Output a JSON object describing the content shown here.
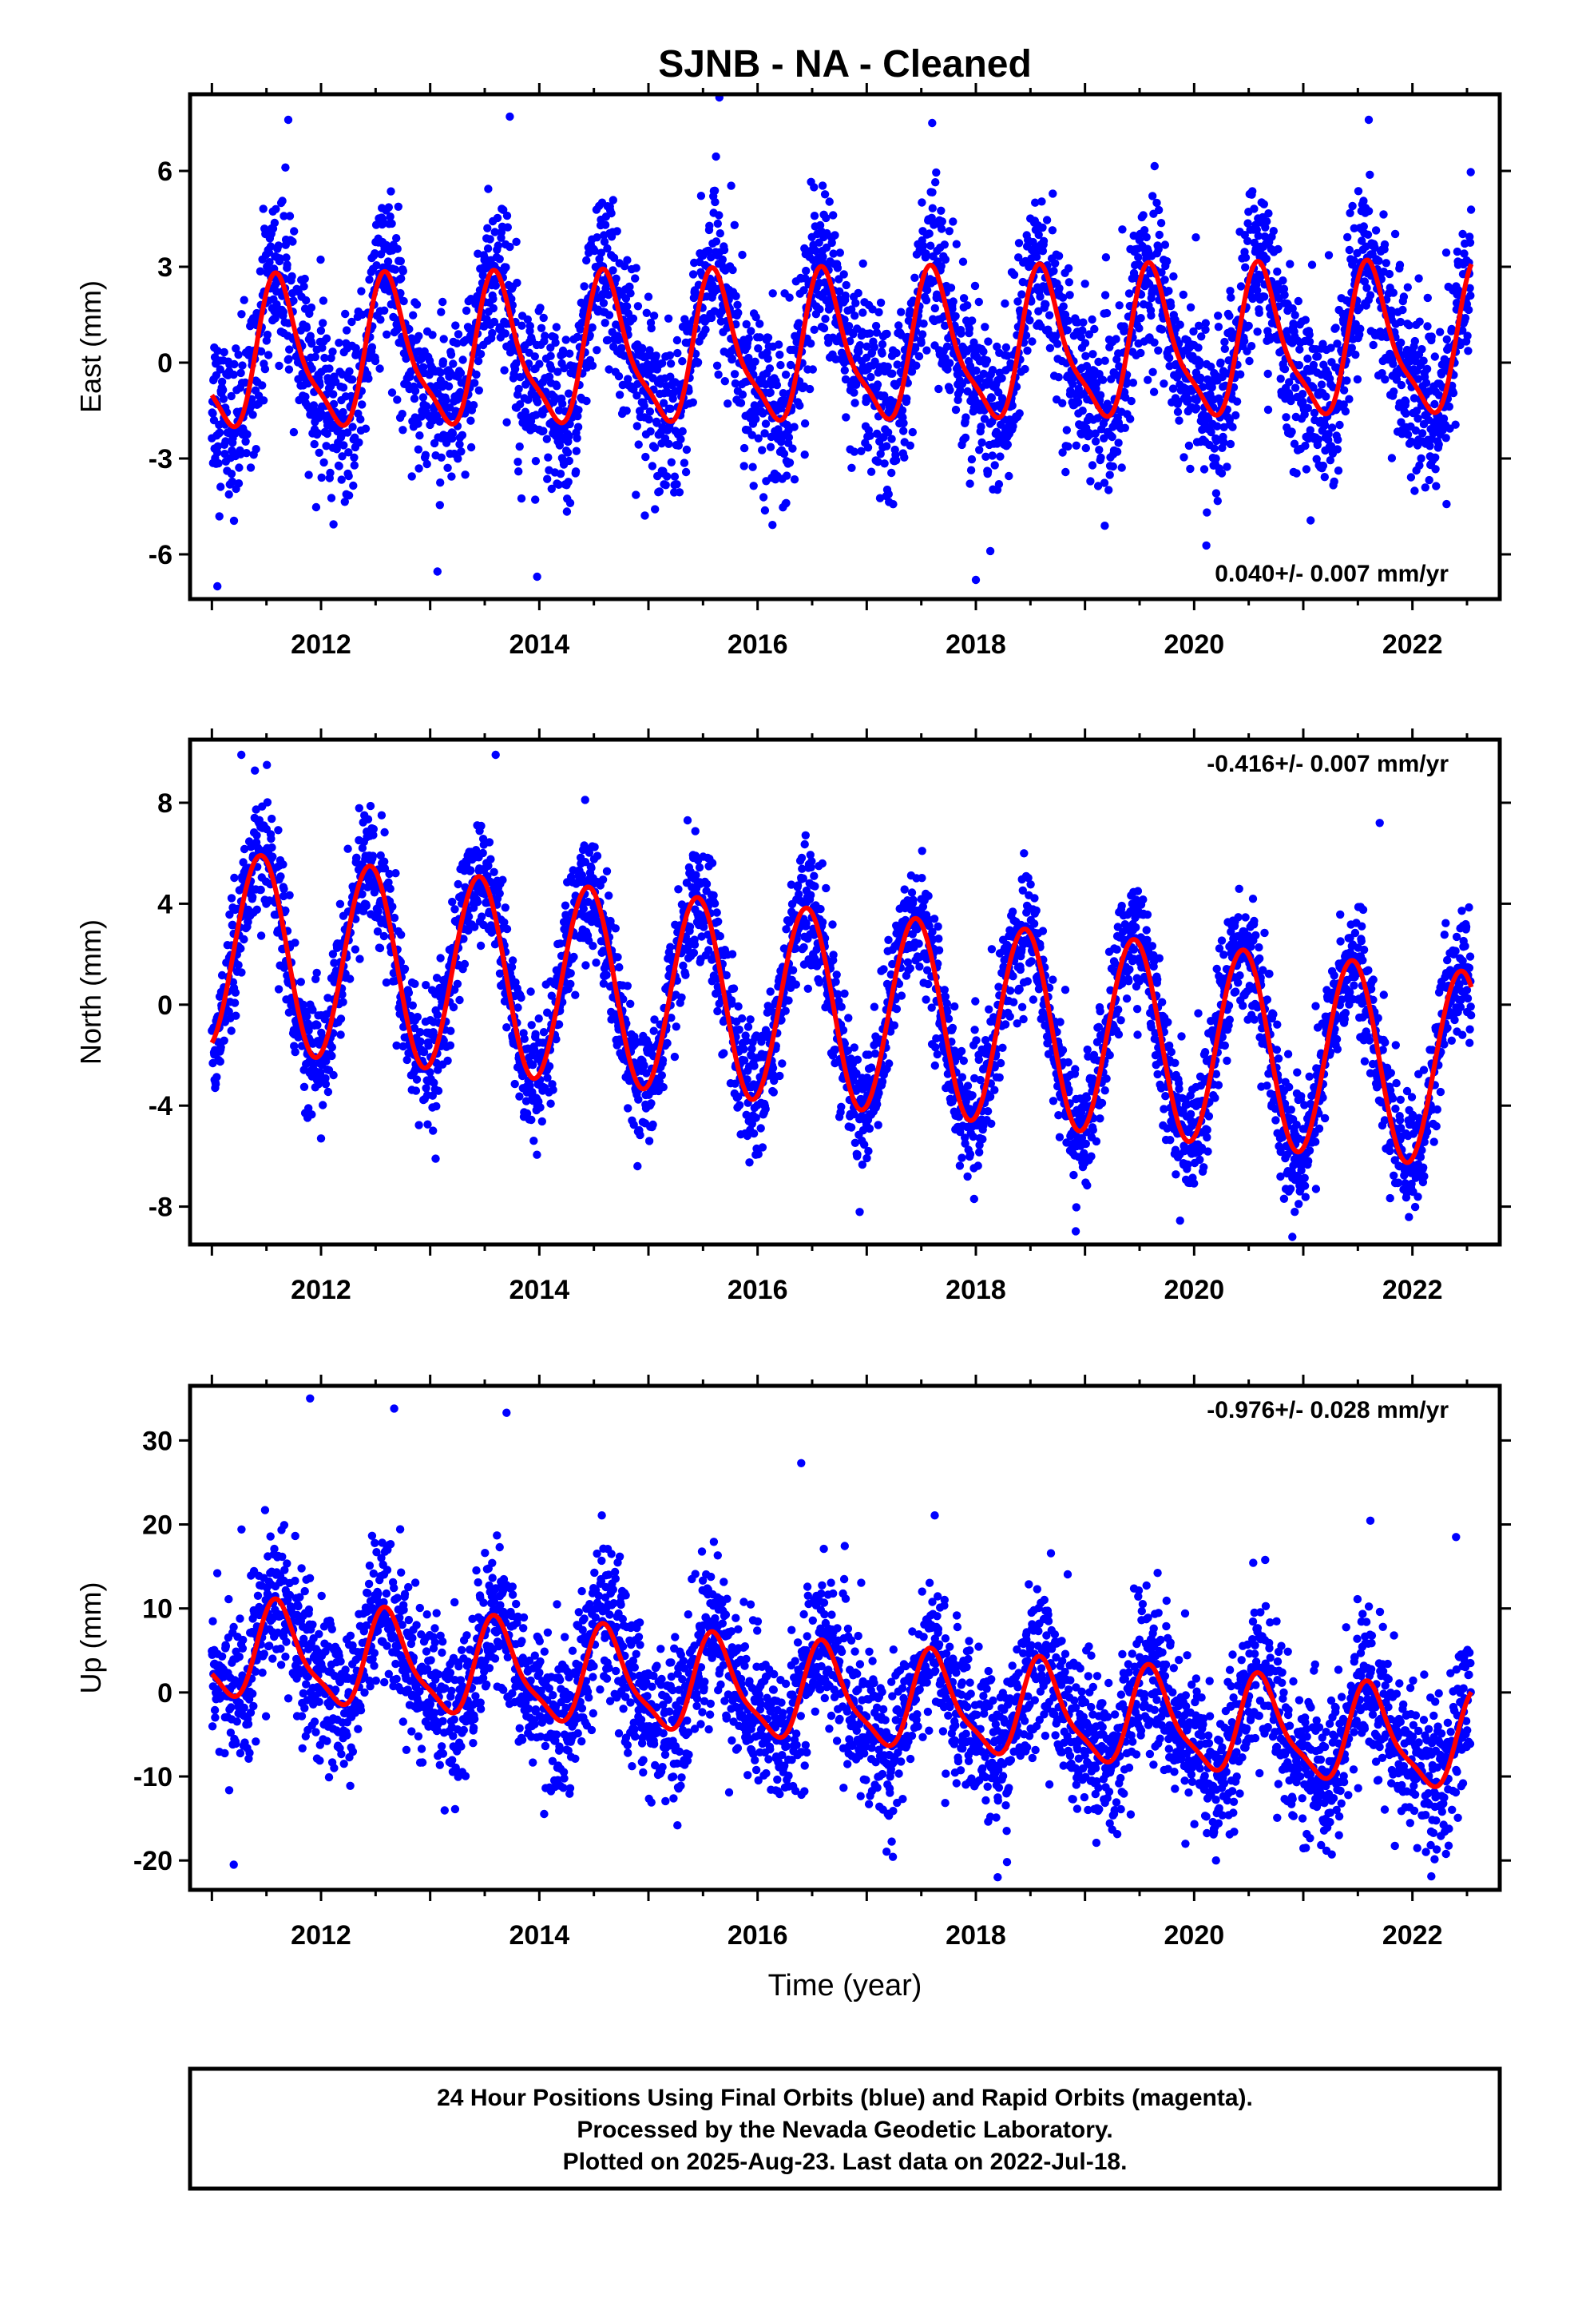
{
  "title": "SJNB  - NA - Cleaned",
  "footer": {
    "lines": [
      "24 Hour Positions Using Final Orbits (blue) and Rapid Orbits (magenta).",
      "Processed by the Nevada Geodetic Laboratory.",
      "Plotted on 2025-Aug-23. Last data on 2022-Jul-18."
    ]
  },
  "colors": {
    "points": "#0000ff",
    "model": "#ff0000",
    "frame": "#000000"
  },
  "chart_data": [
    {
      "type": "scatter",
      "component": "east",
      "ylabel": "East (mm)",
      "xlabel": "",
      "xlim": [
        2010.8,
        2022.8
      ],
      "ylim": [
        -7.4,
        8.4
      ],
      "x_ticks": [
        2012,
        2014,
        2016,
        2018,
        2020,
        2022
      ],
      "y_ticks": [
        -6,
        -3,
        0,
        3,
        6
      ],
      "rate_text": "0.040+/- 0.007 mm/yr",
      "rate_position": "bottom-right",
      "data_range": [
        2011.0,
        2022.54
      ],
      "model": {
        "name": "",
        "offset": 0.1,
        "trend_mm_per_yr": 0.04,
        "annual_amplitude": 2.2,
        "annual_peak": 2011.62,
        "semiannual_amplitude": 0.6,
        "semiannual_peak": 2011.55
      },
      "noise_sd": 1.3,
      "outliers": [
        [
          2011.05,
          -7.0
        ],
        [
          2011.7,
          7.6
        ],
        [
          2013.73,
          7.7
        ],
        [
          2015.65,
          8.3
        ],
        [
          2013.98,
          -6.7
        ],
        [
          2017.6,
          7.5
        ],
        [
          2021.6,
          7.6
        ],
        [
          2018.0,
          -6.8
        ]
      ],
      "grid": false
    },
    {
      "type": "scatter",
      "component": "north",
      "ylabel": "North (mm)",
      "xlabel": "",
      "xlim": [
        2010.8,
        2022.8
      ],
      "ylim": [
        -9.5,
        10.5
      ],
      "x_ticks": [
        2012,
        2014,
        2016,
        2018,
        2020,
        2022
      ],
      "y_ticks": [
        -8,
        -4,
        0,
        4,
        8
      ],
      "rate_text": "-0.416+/- 0.007 mm/yr",
      "rate_position": "top-right",
      "data_range": [
        2011.0,
        2022.54
      ],
      "model": {
        "name": "",
        "offset": 2.2,
        "trend_mm_per_yr": -0.416,
        "annual_amplitude": 3.9,
        "annual_peak": 2011.45,
        "semiannual_amplitude": 0.0,
        "semiannual_peak": 2011.45
      },
      "noise_sd": 1.2,
      "outliers": [
        [
          2011.27,
          9.9
        ],
        [
          2013.6,
          9.9
        ],
        [
          2012.0,
          -5.3
        ],
        [
          2013.05,
          -6.1
        ],
        [
          2014.9,
          -6.4
        ],
        [
          2020.9,
          -9.2
        ],
        [
          2021.7,
          7.2
        ]
      ],
      "grid": false
    },
    {
      "type": "scatter",
      "component": "up",
      "ylabel": "Up (mm)",
      "xlabel": "Time (year)",
      "xlim": [
        2010.8,
        2022.8
      ],
      "ylim": [
        -23.5,
        36.5
      ],
      "x_ticks": [
        2012,
        2014,
        2016,
        2018,
        2020,
        2022
      ],
      "y_ticks": [
        -20,
        -10,
        0,
        10,
        20,
        30
      ],
      "rate_text": "-0.976+/- 0.028 mm/yr",
      "rate_position": "top-right",
      "data_range": [
        2011.0,
        2022.54
      ],
      "model": {
        "name": "",
        "offset": 5.0,
        "trend_mm_per_yr": -0.976,
        "annual_amplitude": 5.5,
        "annual_peak": 2011.62,
        "semiannual_amplitude": 1.5,
        "semiannual_peak": 2011.55
      },
      "noise_sd": 4.5,
      "outliers": [
        [
          2011.9,
          35.0
        ],
        [
          2012.67,
          33.8
        ],
        [
          2013.7,
          33.3
        ],
        [
          2011.2,
          -20.5
        ],
        [
          2018.2,
          -22.0
        ],
        [
          2020.2,
          -20.0
        ],
        [
          2016.4,
          27.3
        ],
        [
          2022.4,
          18.5
        ]
      ],
      "grid": false
    }
  ]
}
